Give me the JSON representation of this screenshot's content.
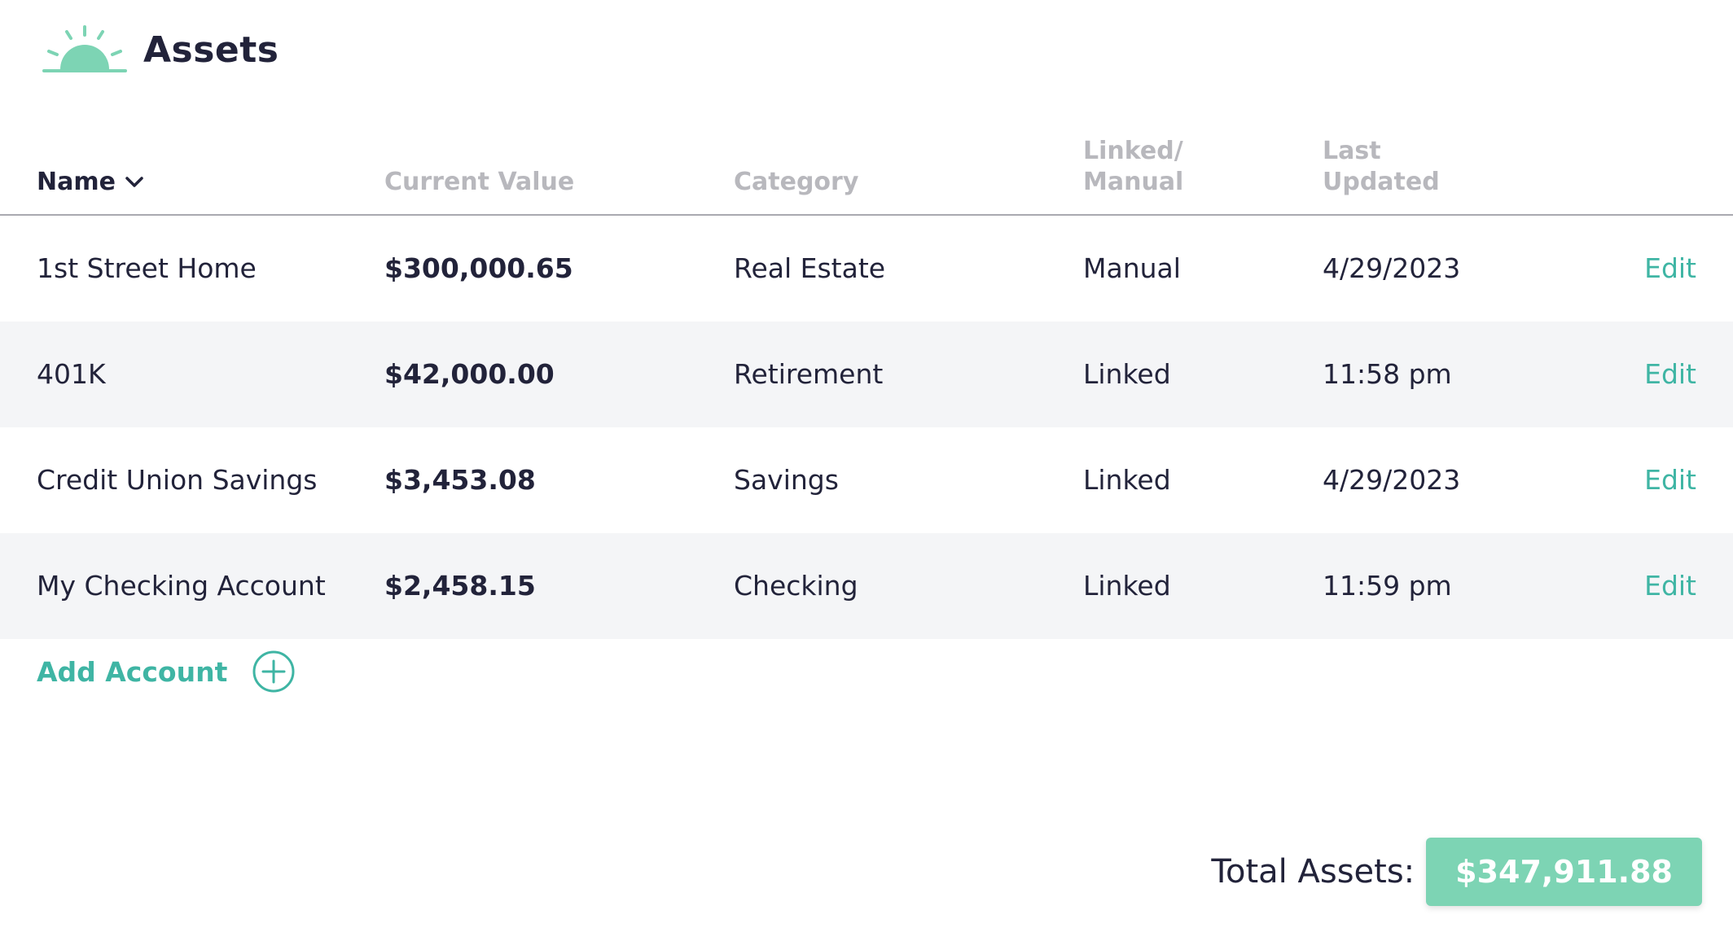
{
  "header": {
    "title": "Assets",
    "logo_icon": "sunrise-icon",
    "logo_color": "#7dd4b4"
  },
  "table": {
    "columns": {
      "name": "Name",
      "current_value": "Current Value",
      "category": "Category",
      "linked_manual_line1": "Linked/",
      "linked_manual_line2": "Manual",
      "last_updated_line1": "Last",
      "last_updated_line2": "Updated"
    },
    "sort_icon": "chevron-down-icon",
    "rows": [
      {
        "name": "1st Street Home",
        "value": "$300,000.65",
        "category": "Real Estate",
        "linked": "Manual",
        "updated": "4/29/2023",
        "action": "Edit"
      },
      {
        "name": "401K",
        "value": "$42,000.00",
        "category": "Retirement",
        "linked": "Linked",
        "updated": "11:58 pm",
        "action": "Edit"
      },
      {
        "name": "Credit Union Savings",
        "value": "$3,453.08",
        "category": "Savings",
        "linked": "Linked",
        "updated": "4/29/2023",
        "action": "Edit"
      },
      {
        "name": "My Checking Account",
        "value": "$2,458.15",
        "category": "Checking",
        "linked": "Linked",
        "updated": "11:59 pm",
        "action": "Edit"
      }
    ]
  },
  "add_account": {
    "label": "Add Account",
    "icon": "plus-circle-icon"
  },
  "total": {
    "label": "Total Assets:",
    "value": "$347,911.88"
  },
  "colors": {
    "accent": "#3fb5a4",
    "badge": "#7dd4b4",
    "text": "#22233a",
    "muted": "#b8b8bd",
    "row_alt": "#f4f5f7"
  }
}
